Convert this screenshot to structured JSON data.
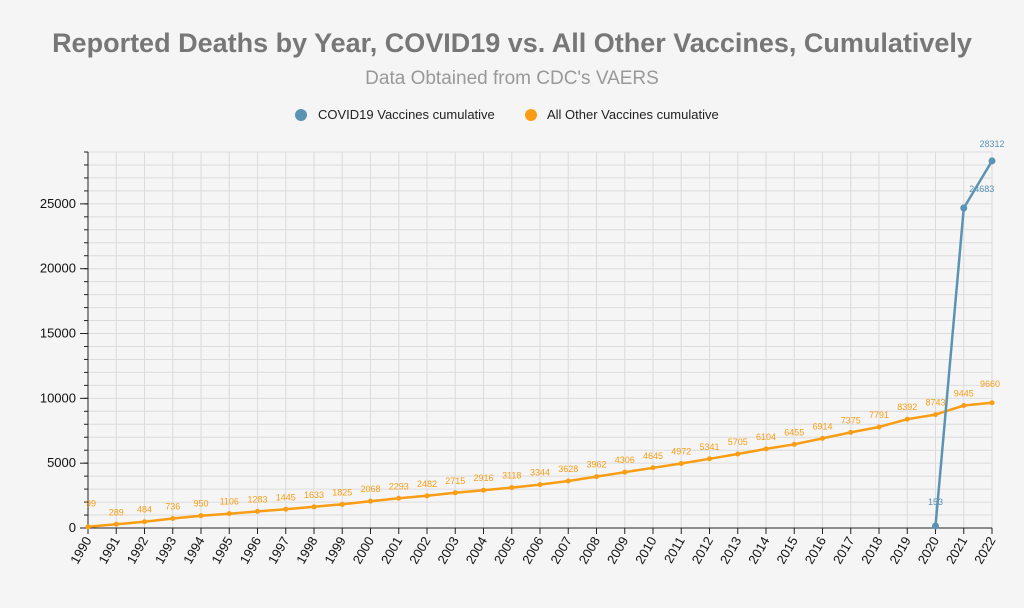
{
  "chart_data": {
    "type": "line",
    "title": "Reported Deaths by Year, COVID19 vs. All Other Vaccines, Cumulatively",
    "subtitle": "Data Obtained from CDC's VAERS",
    "xlabel": "",
    "ylabel": "",
    "x": [
      1990,
      1991,
      1992,
      1993,
      1994,
      1995,
      1996,
      1997,
      1998,
      1999,
      2000,
      2001,
      2002,
      2003,
      2004,
      2005,
      2006,
      2007,
      2008,
      2009,
      2010,
      2011,
      2012,
      2013,
      2014,
      2015,
      2016,
      2017,
      2018,
      2019,
      2020,
      2021,
      2022
    ],
    "ylim": [
      0,
      29000
    ],
    "yticks": [
      0,
      5000,
      10000,
      15000,
      20000,
      25000
    ],
    "grid": true,
    "legend_position": "top-center",
    "series": [
      {
        "name": "COVID19 Vaccines cumulative",
        "color": "#5b93b5",
        "points": [
          [
            2020,
            153
          ],
          [
            2021,
            24683
          ],
          [
            2022,
            28312
          ]
        ]
      },
      {
        "name": "All Other Vaccines cumulative",
        "color": "#f99d14",
        "points": [
          [
            1990,
            99
          ],
          [
            1991,
            289
          ],
          [
            1992,
            484
          ],
          [
            1993,
            736
          ],
          [
            1994,
            950
          ],
          [
            1995,
            1106
          ],
          [
            1996,
            1283
          ],
          [
            1997,
            1445
          ],
          [
            1998,
            1633
          ],
          [
            1999,
            1825
          ],
          [
            2000,
            2068
          ],
          [
            2001,
            2293
          ],
          [
            2002,
            2482
          ],
          [
            2003,
            2715
          ],
          [
            2004,
            2916
          ],
          [
            2005,
            3118
          ],
          [
            2006,
            3344
          ],
          [
            2007,
            3628
          ],
          [
            2008,
            3962
          ],
          [
            2009,
            4306
          ],
          [
            2010,
            4645
          ],
          [
            2011,
            4972
          ],
          [
            2012,
            5341
          ],
          [
            2013,
            5705
          ],
          [
            2014,
            6104
          ],
          [
            2015,
            6455
          ],
          [
            2016,
            6914
          ],
          [
            2017,
            7375
          ],
          [
            2018,
            7791
          ],
          [
            2019,
            8392
          ],
          [
            2020,
            8743
          ],
          [
            2021,
            9445
          ],
          [
            2022,
            9660
          ]
        ]
      }
    ]
  }
}
